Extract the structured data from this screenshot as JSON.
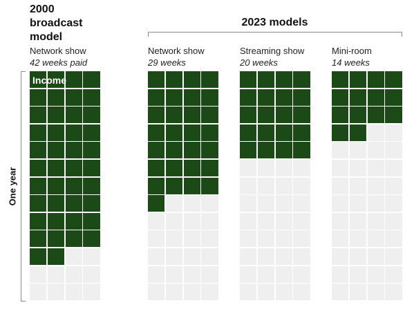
{
  "chart_data": {
    "type": "waffle",
    "title": "2000 broadcast model",
    "group_label": "2023 models",
    "ylabel": "One year",
    "annotation": "Income",
    "total": 52,
    "color": "#1b4a17",
    "empty_color": "#efefef",
    "series": [
      {
        "name": "Network show",
        "values": [
          42
        ],
        "value_labels": [
          "42 weeks paid"
        ]
      },
      {
        "name": "Network show",
        "values": [
          29
        ],
        "value_labels": [
          "29 weeks"
        ]
      },
      {
        "name": "Streaming show",
        "values": [
          20
        ],
        "value_labels": [
          "20 weeks"
        ]
      },
      {
        "name": "Mini-room",
        "values": [
          14
        ],
        "value_labels": [
          "14 weeks"
        ]
      }
    ]
  }
}
